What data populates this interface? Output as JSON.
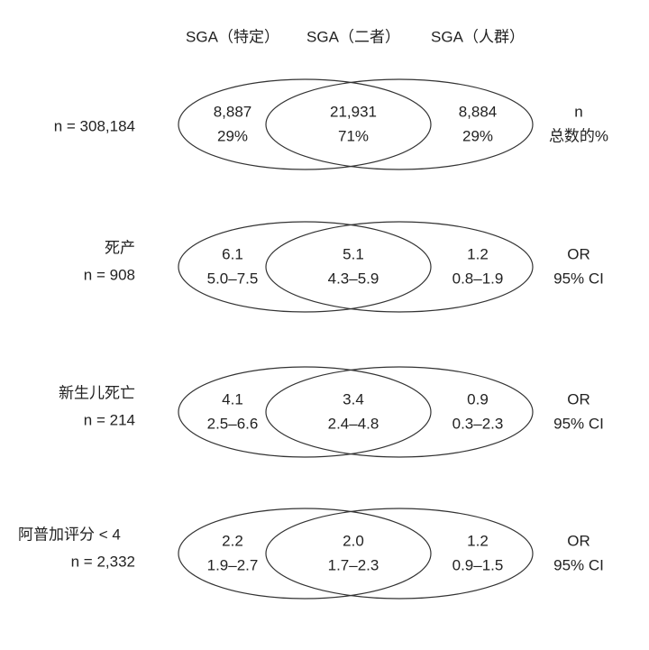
{
  "headers": [
    "SGA（特定）",
    "SGA（二者）",
    "SGA（人群）"
  ],
  "rows": [
    {
      "label": [
        "n = 308,184"
      ],
      "left": [
        "8,887",
        "29%"
      ],
      "both": [
        "21,931",
        "71%"
      ],
      "right": [
        "8,884",
        "29%"
      ],
      "measure": [
        "n",
        "总数的%"
      ]
    },
    {
      "label": [
        "死产",
        "n = 908"
      ],
      "left": [
        "6.1",
        "5.0–7.5"
      ],
      "both": [
        "5.1",
        "4.3–5.9"
      ],
      "right": [
        "1.2",
        "0.8–1.9"
      ],
      "measure": [
        "OR",
        "95% CI"
      ]
    },
    {
      "label": [
        "新生儿死亡",
        "n = 214"
      ],
      "left": [
        "4.1",
        "2.5–6.6"
      ],
      "both": [
        "3.4",
        "2.4–4.8"
      ],
      "right": [
        "0.9",
        "0.3–2.3"
      ],
      "measure": [
        "OR",
        "95% CI"
      ]
    },
    {
      "label": [
        "阿普加评分 < 4",
        "n = 2,332"
      ],
      "left": [
        "2.2",
        "1.9–2.7"
      ],
      "both": [
        "2.0",
        "1.7–2.3"
      ],
      "right": [
        "1.2",
        "0.9–1.5"
      ],
      "measure": [
        "OR",
        "95% CI"
      ]
    }
  ]
}
